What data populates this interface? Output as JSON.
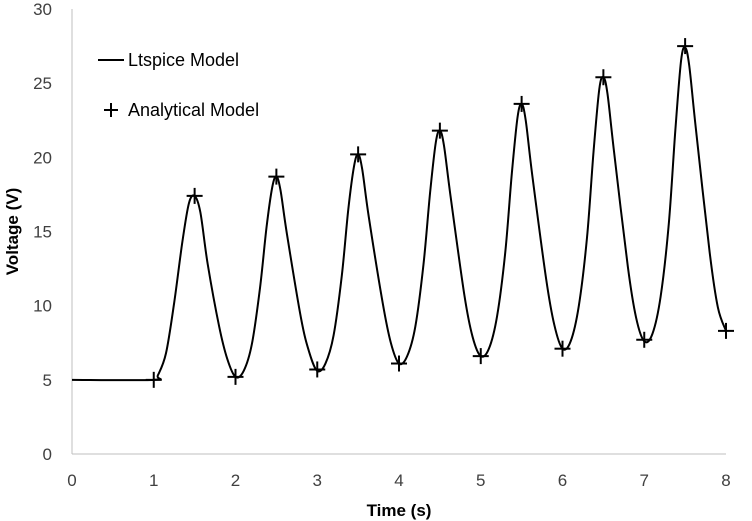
{
  "chart_data": {
    "type": "line",
    "xlabel": "Time (s)",
    "ylabel": "Voltage (V)",
    "xlim": [
      0,
      8
    ],
    "ylim": [
      0,
      30
    ],
    "xticks": [
      "0",
      "1",
      "2",
      "3",
      "4",
      "5",
      "6",
      "7",
      "8"
    ],
    "yticks": [
      "0",
      "5",
      "10",
      "15",
      "20",
      "25",
      "30"
    ],
    "grid": false,
    "legend_position": "top-left",
    "series": [
      {
        "name": "Ltspice Model",
        "style": "line",
        "color": "#000000",
        "x": [
          0,
          1,
          1.05,
          1.15,
          1.25,
          1.35,
          1.43,
          1.5,
          1.57,
          1.66,
          1.8,
          1.9,
          2,
          2.1,
          2.2,
          2.3,
          2.38,
          2.45,
          2.5,
          2.55,
          2.63,
          2.8,
          2.9,
          3,
          3.1,
          3.2,
          3.3,
          3.38,
          3.45,
          3.5,
          3.55,
          3.63,
          3.8,
          3.9,
          4,
          4.1,
          4.2,
          4.3,
          4.38,
          4.45,
          4.5,
          4.55,
          4.63,
          4.8,
          4.9,
          5,
          5.1,
          5.2,
          5.3,
          5.38,
          5.45,
          5.5,
          5.55,
          5.63,
          5.8,
          5.9,
          6,
          6.1,
          6.2,
          6.3,
          6.38,
          6.45,
          6.5,
          6.55,
          6.63,
          6.8,
          6.9,
          7,
          7.1,
          7.2,
          7.3,
          7.38,
          7.45,
          7.5,
          7.55,
          7.63,
          7.8,
          7.9,
          8
        ],
        "y": [
          5,
          5,
          5.3,
          6.8,
          10.2,
          14.3,
          16.9,
          17.4,
          16.3,
          12.8,
          8.6,
          6.4,
          5.2,
          5.6,
          7.4,
          11.2,
          15.3,
          18.0,
          18.7,
          17.8,
          14.8,
          9.2,
          6.9,
          5.6,
          6.1,
          8.0,
          12.0,
          16.5,
          19.4,
          20.2,
          19.2,
          16.0,
          10.2,
          7.5,
          6.1,
          6.6,
          8.6,
          12.8,
          17.6,
          21.0,
          21.8,
          20.8,
          17.4,
          10.7,
          7.9,
          6.6,
          7.1,
          9.3,
          13.6,
          18.9,
          22.7,
          23.6,
          22.5,
          18.8,
          11.8,
          8.7,
          7.1,
          7.6,
          10.0,
          14.6,
          20.4,
          24.6,
          25.4,
          24.3,
          20.4,
          12.6,
          9.2,
          7.6,
          8.1,
          10.6,
          15.5,
          21.8,
          26.5,
          27.4,
          26.2,
          22.0,
          13.6,
          9.9,
          8.3
        ]
      },
      {
        "name": "Analytical Model",
        "style": "plus-marker",
        "color": "#000000",
        "x": [
          1,
          1.5,
          2,
          2.5,
          3,
          3.5,
          4,
          4.5,
          5,
          5.5,
          6,
          6.5,
          7,
          7.5,
          8
        ],
        "y": [
          5.0,
          17.4,
          5.2,
          18.7,
          5.7,
          20.2,
          6.1,
          21.8,
          6.6,
          23.6,
          7.1,
          25.4,
          7.7,
          27.5,
          8.3
        ]
      }
    ]
  }
}
